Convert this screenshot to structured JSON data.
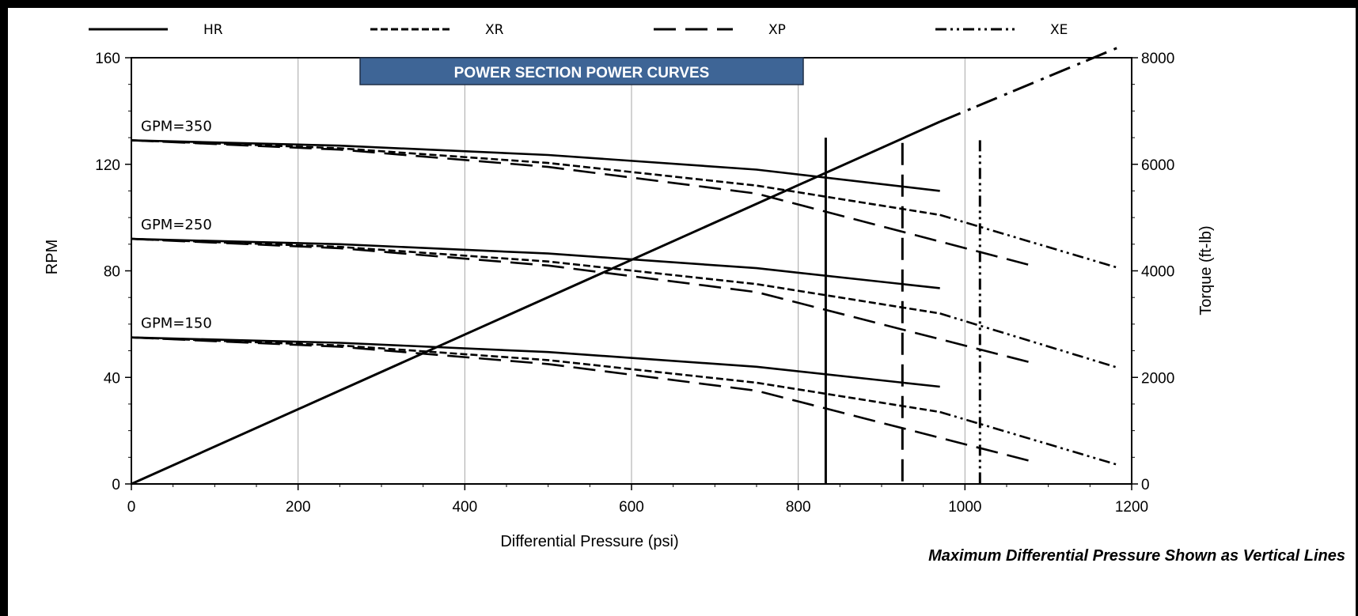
{
  "chart_data": {
    "type": "line",
    "title": "POWER SECTION POWER CURVES",
    "xlabel": "Differential Pressure (psi)",
    "ylabel": "RPM",
    "y2label": "Torque (ft-lb)",
    "footnote": "Maximum Differential Pressure Shown as Vertical Lines",
    "xlim": [
      0,
      1200
    ],
    "ylim": [
      0,
      160
    ],
    "y2lim": [
      0,
      8000
    ],
    "xticks": [
      0,
      200,
      400,
      600,
      800,
      1000,
      1200
    ],
    "yticks": [
      0,
      40,
      80,
      120,
      160
    ],
    "y2ticks": [
      0,
      2000,
      4000,
      6000,
      8000
    ],
    "grid": "vertical",
    "legend_position": "top",
    "legend": [
      {
        "name": "HR",
        "style": "solid"
      },
      {
        "name": "XR",
        "style": "short-dash"
      },
      {
        "name": "XP",
        "style": "long-dash"
      },
      {
        "name": "XE",
        "style": "dash-dot-dot"
      }
    ],
    "flow_labels": [
      {
        "text": "GPM=350",
        "rpm": 129
      },
      {
        "text": "GPM=250",
        "rpm": 92
      },
      {
        "text": "GPM=150",
        "rpm": 55
      }
    ],
    "rpm_curves": [
      {
        "legend": "HR",
        "flow": "GPM=350",
        "axis": "rpm",
        "x": [
          0,
          250,
          500,
          750,
          970
        ],
        "y": [
          129,
          127,
          123.5,
          118,
          110
        ]
      },
      {
        "legend": "HR",
        "flow": "GPM=250",
        "axis": "rpm",
        "x": [
          0,
          250,
          500,
          750,
          970
        ],
        "y": [
          92,
          90,
          86.5,
          81,
          73.5
        ]
      },
      {
        "legend": "HR",
        "flow": "GPM=150",
        "axis": "rpm",
        "x": [
          0,
          250,
          500,
          750,
          970
        ],
        "y": [
          55,
          53,
          49.5,
          44,
          36.5
        ]
      },
      {
        "legend": "XR",
        "flow": "GPM=350",
        "axis": "rpm",
        "x": [
          0,
          250,
          500,
          750,
          970
        ],
        "y": [
          129,
          126,
          120.5,
          112,
          101
        ]
      },
      {
        "legend": "XR",
        "flow": "GPM=250",
        "axis": "rpm",
        "x": [
          0,
          250,
          500,
          750,
          970
        ],
        "y": [
          92,
          89,
          83.5,
          75,
          64
        ]
      },
      {
        "legend": "XR",
        "flow": "GPM=150",
        "axis": "rpm",
        "x": [
          0,
          250,
          500,
          750,
          970
        ],
        "y": [
          55,
          52,
          46.5,
          38,
          27
        ]
      },
      {
        "legend": "XP",
        "flow": "GPM=350",
        "axis": "rpm",
        "x": [
          0,
          250,
          500,
          750,
          1080
        ],
        "y": [
          129,
          125.5,
          119,
          109,
          82
        ]
      },
      {
        "legend": "XP",
        "flow": "GPM=250",
        "axis": "rpm",
        "x": [
          0,
          250,
          500,
          750,
          1080
        ],
        "y": [
          92,
          88.5,
          82,
          72,
          45.5
        ]
      },
      {
        "legend": "XP",
        "flow": "GPM=150",
        "axis": "rpm",
        "x": [
          0,
          250,
          500,
          750,
          1080
        ],
        "y": [
          55,
          51.5,
          45,
          35,
          8.5
        ]
      },
      {
        "legend": "XE",
        "flow": "GPM=350",
        "axis": "rpm",
        "x": [
          970,
          1185
        ],
        "y": [
          101,
          81
        ]
      },
      {
        "legend": "XE",
        "flow": "GPM=250",
        "axis": "rpm",
        "x": [
          970,
          1185
        ],
        "y": [
          64,
          43.5
        ]
      },
      {
        "legend": "XE",
        "flow": "GPM=150",
        "axis": "rpm",
        "x": [
          970,
          1185
        ],
        "y": [
          27,
          7
        ]
      }
    ],
    "torque_line": {
      "axis": "torque",
      "x": [
        0,
        970,
        1185
      ],
      "y": [
        0,
        6800,
        8200
      ]
    },
    "max_pressure_lines": [
      {
        "legend": "HR",
        "x": 833,
        "rpm_top": 130
      },
      {
        "legend": "XP",
        "x": 925,
        "rpm_top": 128
      },
      {
        "legend": "XE",
        "x": 1018,
        "rpm_top": 129
      }
    ]
  }
}
